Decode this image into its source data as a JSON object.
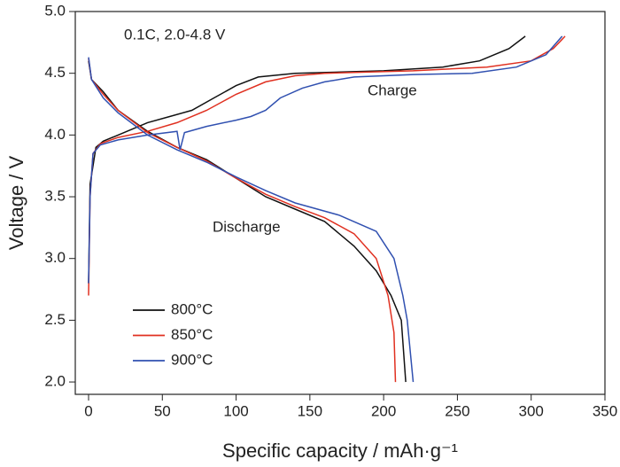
{
  "chart_data": {
    "type": "line",
    "annotations": [
      "0.1C, 2.0-4.8 V",
      "Charge",
      "Discharge"
    ],
    "xlabel": "Specific capacity / mAh·g⁻¹",
    "ylabel": "Voltage / V",
    "xlim": [
      -9,
      350
    ],
    "ylim": [
      1.9,
      5.0
    ],
    "xticks": [
      0,
      50,
      100,
      150,
      200,
      250,
      300,
      350
    ],
    "yticks": [
      {
        "value": 2.0,
        "label": "2.0"
      },
      {
        "value": 2.5,
        "label": "2.5"
      },
      {
        "value": 3.0,
        "label": "3.0"
      },
      {
        "value": 3.5,
        "label": "3.5"
      },
      {
        "value": 4.0,
        "label": "4.0"
      },
      {
        "value": 4.5,
        "label": "4.5"
      },
      {
        "value": 5.0,
        "label": "5.0"
      }
    ],
    "legend": "lower left",
    "series": [
      {
        "name": "800°C",
        "color": "#111111",
        "curves": [
          {
            "x": [
              0,
              1,
              5,
              10,
              20,
              40,
              55,
              70,
              85,
              100,
              115,
              140,
              200,
              240,
              265,
              285,
              296
            ],
            "values": [
              2.8,
              3.6,
              3.9,
              3.95,
              4.0,
              4.1,
              4.15,
              4.2,
              4.3,
              4.4,
              4.47,
              4.5,
              4.52,
              4.55,
              4.6,
              4.7,
              4.8
            ]
          },
          {
            "x": [
              0,
              2,
              10,
              20,
              40,
              60,
              80,
              100,
              120,
              140,
              160,
              180,
              195,
              205,
              212,
              215
            ],
            "values": [
              4.6,
              4.45,
              4.35,
              4.2,
              4.03,
              3.9,
              3.8,
              3.65,
              3.5,
              3.4,
              3.3,
              3.1,
              2.9,
              2.7,
              2.5,
              2.0
            ]
          }
        ]
      },
      {
        "name": "850°C",
        "color": "#e03020",
        "curves": [
          {
            "x": [
              0,
              1,
              3,
              8,
              20,
              40,
              60,
              80,
              100,
              120,
              140,
              160,
              220,
              270,
              300,
              315,
              323
            ],
            "values": [
              2.7,
              3.5,
              3.85,
              3.93,
              3.98,
              4.03,
              4.1,
              4.2,
              4.33,
              4.43,
              4.48,
              4.5,
              4.52,
              4.55,
              4.6,
              4.7,
              4.8
            ]
          },
          {
            "x": [
              0,
              2,
              10,
              20,
              40,
              60,
              80,
              100,
              120,
              140,
              160,
              180,
              195,
              203,
              207,
              208
            ],
            "values": [
              4.62,
              4.45,
              4.33,
              4.2,
              4.02,
              3.9,
              3.79,
              3.65,
              3.52,
              3.42,
              3.33,
              3.2,
              3.0,
              2.7,
              2.4,
              2.0
            ]
          }
        ]
      },
      {
        "name": "900°C",
        "color": "#3050b0",
        "curves": [
          {
            "x": [
              0,
              1,
              3,
              8,
              20,
              40,
              60,
              62,
              65,
              80,
              100,
              110,
              120,
              130,
              145,
              160,
              180,
              220,
              260,
              290,
              310,
              321
            ],
            "values": [
              2.8,
              3.5,
              3.85,
              3.92,
              3.96,
              4.0,
              4.03,
              3.88,
              4.02,
              4.07,
              4.12,
              4.15,
              4.2,
              4.3,
              4.38,
              4.43,
              4.47,
              4.49,
              4.5,
              4.55,
              4.65,
              4.8
            ]
          },
          {
            "x": [
              0,
              2,
              10,
              20,
              40,
              60,
              80,
              100,
              120,
              140,
              170,
              195,
              207,
              213,
              216,
              220
            ],
            "values": [
              4.63,
              4.45,
              4.3,
              4.18,
              4.0,
              3.88,
              3.78,
              3.66,
              3.55,
              3.45,
              3.35,
              3.22,
              3.0,
              2.7,
              2.5,
              2.0
            ]
          }
        ]
      }
    ]
  }
}
